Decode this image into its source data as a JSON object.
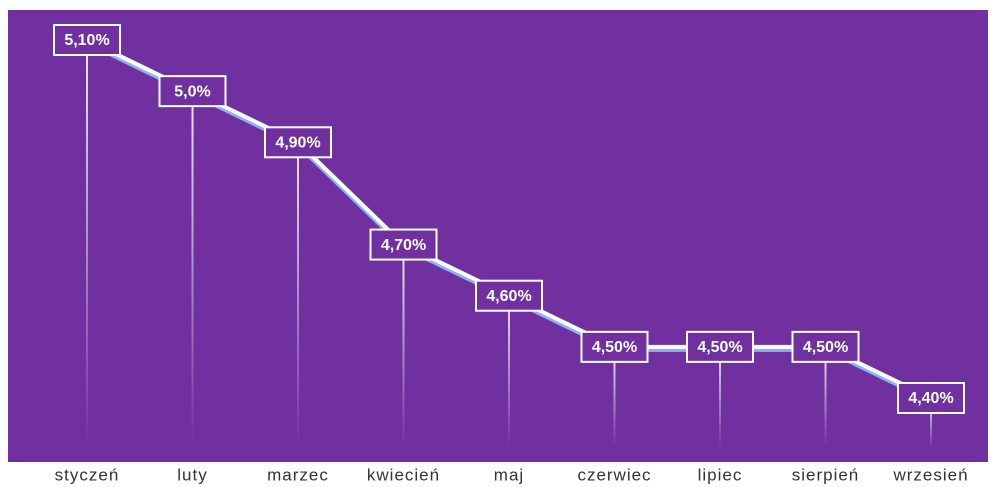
{
  "chart_data": {
    "type": "line",
    "categories": [
      "styczeń",
      "luty",
      "marzec",
      "kwiecień",
      "maj",
      "czerwiec",
      "lipiec",
      "sierpień",
      "wrzesień"
    ],
    "values": [
      5.1,
      5.0,
      4.9,
      4.7,
      4.6,
      4.5,
      4.5,
      4.5,
      4.4
    ],
    "value_labels": [
      "5,10%",
      "5,0%",
      "4,90%",
      "4,70%",
      "4,60%",
      "4,50%",
      "4,50%",
      "4,50%",
      "4,40%"
    ],
    "color": "#ffffff",
    "background": "#7030a0"
  }
}
